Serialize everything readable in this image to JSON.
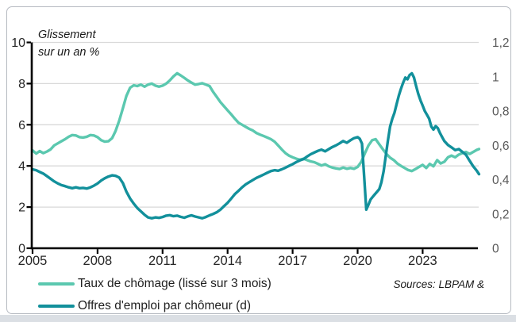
{
  "annotation": {
    "line1": "Glissement",
    "line2": "sur un an %"
  },
  "sources_label": "Sources: LBPAM &",
  "colors": {
    "unemployment_line": "#5BC8AF",
    "vacancies_line": "#12909B",
    "gridline": "#d9d9d9",
    "axis": "#000000",
    "left_tick_label": "#262626",
    "right_tick_label": "#595959",
    "x_tick_label": "#262626"
  },
  "chart_data": {
    "type": "line",
    "annotation": "Glissement sur un an %",
    "legend_position": "bottom-left",
    "grid": "horizontal-left-axis",
    "x_axis": {
      "ticks": [
        2005,
        2008,
        2011,
        2014,
        2017,
        2020,
        2023
      ],
      "tick_labels": [
        "2005",
        "2008",
        "2011",
        "2014",
        "2017",
        "2020",
        "2023"
      ],
      "range": [
        2005,
        2025.7
      ]
    },
    "y_axis_left": {
      "tick_values": [
        0,
        2,
        4,
        6,
        8,
        10
      ],
      "tick_labels": [
        "0",
        "2",
        "4",
        "6",
        "8",
        "10"
      ],
      "range": [
        0,
        10
      ]
    },
    "y_axis_right": {
      "tick_values": [
        0,
        0.2,
        0.4,
        0.6,
        0.8,
        1,
        1.2
      ],
      "tick_labels": [
        "0",
        "0,2",
        "0,4",
        "0,6",
        "0,8",
        "1",
        "1,2"
      ],
      "range": [
        0,
        1.2
      ]
    },
    "series": [
      {
        "name": "Taux de chômage (lissé sur 3 mois)",
        "axis": "left",
        "color": "#5BC8AF",
        "points": [
          [
            2005.0,
            4.75
          ],
          [
            2005.17,
            4.6
          ],
          [
            2005.33,
            4.72
          ],
          [
            2005.5,
            4.62
          ],
          [
            2005.67,
            4.7
          ],
          [
            2005.83,
            4.8
          ],
          [
            2006.0,
            5.0
          ],
          [
            2006.17,
            5.1
          ],
          [
            2006.33,
            5.2
          ],
          [
            2006.5,
            5.3
          ],
          [
            2006.67,
            5.42
          ],
          [
            2006.83,
            5.5
          ],
          [
            2007.0,
            5.48
          ],
          [
            2007.17,
            5.4
          ],
          [
            2007.33,
            5.38
          ],
          [
            2007.5,
            5.42
          ],
          [
            2007.67,
            5.5
          ],
          [
            2007.83,
            5.48
          ],
          [
            2008.0,
            5.4
          ],
          [
            2008.17,
            5.25
          ],
          [
            2008.33,
            5.18
          ],
          [
            2008.5,
            5.2
          ],
          [
            2008.67,
            5.35
          ],
          [
            2008.83,
            5.7
          ],
          [
            2009.0,
            6.2
          ],
          [
            2009.17,
            6.8
          ],
          [
            2009.33,
            7.4
          ],
          [
            2009.5,
            7.8
          ],
          [
            2009.67,
            7.92
          ],
          [
            2009.83,
            7.88
          ],
          [
            2010.0,
            7.95
          ],
          [
            2010.17,
            7.85
          ],
          [
            2010.33,
            7.95
          ],
          [
            2010.5,
            8.0
          ],
          [
            2010.67,
            7.9
          ],
          [
            2010.83,
            7.85
          ],
          [
            2011.0,
            7.9
          ],
          [
            2011.17,
            8.0
          ],
          [
            2011.33,
            8.15
          ],
          [
            2011.5,
            8.35
          ],
          [
            2011.67,
            8.5
          ],
          [
            2011.83,
            8.4
          ],
          [
            2012.0,
            8.28
          ],
          [
            2012.17,
            8.15
          ],
          [
            2012.33,
            8.05
          ],
          [
            2012.5,
            7.95
          ],
          [
            2012.67,
            7.98
          ],
          [
            2012.83,
            8.02
          ],
          [
            2013.0,
            7.95
          ],
          [
            2013.17,
            7.88
          ],
          [
            2013.33,
            7.6
          ],
          [
            2013.5,
            7.35
          ],
          [
            2013.67,
            7.1
          ],
          [
            2013.83,
            6.9
          ],
          [
            2014.0,
            6.7
          ],
          [
            2014.17,
            6.5
          ],
          [
            2014.33,
            6.3
          ],
          [
            2014.5,
            6.1
          ],
          [
            2014.67,
            6.0
          ],
          [
            2014.83,
            5.9
          ],
          [
            2015.0,
            5.8
          ],
          [
            2015.17,
            5.72
          ],
          [
            2015.33,
            5.6
          ],
          [
            2015.5,
            5.52
          ],
          [
            2015.67,
            5.45
          ],
          [
            2015.83,
            5.38
          ],
          [
            2016.0,
            5.3
          ],
          [
            2016.17,
            5.18
          ],
          [
            2016.33,
            5.0
          ],
          [
            2016.5,
            4.8
          ],
          [
            2016.67,
            4.62
          ],
          [
            2016.83,
            4.5
          ],
          [
            2017.0,
            4.42
          ],
          [
            2017.17,
            4.35
          ],
          [
            2017.33,
            4.3
          ],
          [
            2017.5,
            4.35
          ],
          [
            2017.67,
            4.28
          ],
          [
            2017.83,
            4.22
          ],
          [
            2018.0,
            4.18
          ],
          [
            2018.17,
            4.1
          ],
          [
            2018.33,
            4.02
          ],
          [
            2018.5,
            4.08
          ],
          [
            2018.67,
            3.98
          ],
          [
            2018.83,
            3.92
          ],
          [
            2019.0,
            3.88
          ],
          [
            2019.17,
            3.85
          ],
          [
            2019.33,
            3.92
          ],
          [
            2019.5,
            3.86
          ],
          [
            2019.67,
            3.9
          ],
          [
            2019.83,
            3.86
          ],
          [
            2020.0,
            3.95
          ],
          [
            2020.17,
            4.2
          ],
          [
            2020.33,
            4.6
          ],
          [
            2020.5,
            5.0
          ],
          [
            2020.67,
            5.25
          ],
          [
            2020.83,
            5.3
          ],
          [
            2021.0,
            5.05
          ],
          [
            2021.17,
            4.8
          ],
          [
            2021.33,
            4.58
          ],
          [
            2021.5,
            4.4
          ],
          [
            2021.67,
            4.28
          ],
          [
            2021.83,
            4.12
          ],
          [
            2022.0,
            4.0
          ],
          [
            2022.17,
            3.9
          ],
          [
            2022.33,
            3.8
          ],
          [
            2022.5,
            3.75
          ],
          [
            2022.67,
            3.85
          ],
          [
            2022.83,
            3.95
          ],
          [
            2023.0,
            4.05
          ],
          [
            2023.17,
            3.9
          ],
          [
            2023.33,
            4.1
          ],
          [
            2023.5,
            3.98
          ],
          [
            2023.67,
            4.28
          ],
          [
            2023.83,
            4.12
          ],
          [
            2024.0,
            4.2
          ],
          [
            2024.17,
            4.42
          ],
          [
            2024.33,
            4.5
          ],
          [
            2024.5,
            4.42
          ],
          [
            2024.67,
            4.55
          ],
          [
            2024.83,
            4.62
          ],
          [
            2025.0,
            4.68
          ],
          [
            2025.17,
            4.58
          ],
          [
            2025.33,
            4.68
          ],
          [
            2025.5,
            4.78
          ],
          [
            2025.6,
            4.82
          ]
        ]
      },
      {
        "name": "Offres d'emploi par chômeur (d)",
        "axis": "right",
        "color": "#12909B",
        "points": [
          [
            2005.0,
            0.46
          ],
          [
            2005.17,
            0.455
          ],
          [
            2005.33,
            0.445
          ],
          [
            2005.5,
            0.435
          ],
          [
            2005.67,
            0.42
          ],
          [
            2005.83,
            0.405
          ],
          [
            2006.0,
            0.39
          ],
          [
            2006.17,
            0.378
          ],
          [
            2006.33,
            0.368
          ],
          [
            2006.5,
            0.362
          ],
          [
            2006.67,
            0.355
          ],
          [
            2006.83,
            0.35
          ],
          [
            2007.0,
            0.355
          ],
          [
            2007.17,
            0.35
          ],
          [
            2007.33,
            0.352
          ],
          [
            2007.5,
            0.348
          ],
          [
            2007.67,
            0.355
          ],
          [
            2007.83,
            0.365
          ],
          [
            2008.0,
            0.378
          ],
          [
            2008.17,
            0.395
          ],
          [
            2008.33,
            0.408
          ],
          [
            2008.5,
            0.418
          ],
          [
            2008.67,
            0.425
          ],
          [
            2008.83,
            0.422
          ],
          [
            2009.0,
            0.412
          ],
          [
            2009.17,
            0.38
          ],
          [
            2009.33,
            0.33
          ],
          [
            2009.5,
            0.29
          ],
          [
            2009.67,
            0.26
          ],
          [
            2009.83,
            0.235
          ],
          [
            2010.0,
            0.215
          ],
          [
            2010.17,
            0.195
          ],
          [
            2010.33,
            0.18
          ],
          [
            2010.5,
            0.175
          ],
          [
            2010.67,
            0.18
          ],
          [
            2010.83,
            0.177
          ],
          [
            2011.0,
            0.182
          ],
          [
            2011.17,
            0.19
          ],
          [
            2011.33,
            0.193
          ],
          [
            2011.5,
            0.187
          ],
          [
            2011.67,
            0.19
          ],
          [
            2011.83,
            0.183
          ],
          [
            2012.0,
            0.178
          ],
          [
            2012.17,
            0.186
          ],
          [
            2012.33,
            0.192
          ],
          [
            2012.5,
            0.185
          ],
          [
            2012.67,
            0.18
          ],
          [
            2012.83,
            0.175
          ],
          [
            2013.0,
            0.182
          ],
          [
            2013.17,
            0.192
          ],
          [
            2013.33,
            0.2
          ],
          [
            2013.5,
            0.21
          ],
          [
            2013.67,
            0.225
          ],
          [
            2013.83,
            0.245
          ],
          [
            2014.0,
            0.265
          ],
          [
            2014.17,
            0.29
          ],
          [
            2014.33,
            0.315
          ],
          [
            2014.5,
            0.335
          ],
          [
            2014.67,
            0.355
          ],
          [
            2014.83,
            0.372
          ],
          [
            2015.0,
            0.385
          ],
          [
            2015.17,
            0.398
          ],
          [
            2015.33,
            0.41
          ],
          [
            2015.5,
            0.42
          ],
          [
            2015.67,
            0.43
          ],
          [
            2015.83,
            0.44
          ],
          [
            2016.0,
            0.45
          ],
          [
            2016.17,
            0.455
          ],
          [
            2016.33,
            0.452
          ],
          [
            2016.5,
            0.46
          ],
          [
            2016.67,
            0.47
          ],
          [
            2016.83,
            0.48
          ],
          [
            2017.0,
            0.49
          ],
          [
            2017.17,
            0.502
          ],
          [
            2017.33,
            0.512
          ],
          [
            2017.5,
            0.52
          ],
          [
            2017.67,
            0.535
          ],
          [
            2017.83,
            0.548
          ],
          [
            2018.0,
            0.558
          ],
          [
            2018.17,
            0.568
          ],
          [
            2018.33,
            0.575
          ],
          [
            2018.5,
            0.565
          ],
          [
            2018.67,
            0.578
          ],
          [
            2018.83,
            0.59
          ],
          [
            2019.0,
            0.6
          ],
          [
            2019.17,
            0.612
          ],
          [
            2019.33,
            0.625
          ],
          [
            2019.5,
            0.615
          ],
          [
            2019.67,
            0.63
          ],
          [
            2019.83,
            0.642
          ],
          [
            2020.0,
            0.648
          ],
          [
            2020.1,
            0.638
          ],
          [
            2020.2,
            0.61
          ],
          [
            2020.3,
            0.42
          ],
          [
            2020.4,
            0.225
          ],
          [
            2020.5,
            0.255
          ],
          [
            2020.6,
            0.285
          ],
          [
            2020.7,
            0.3
          ],
          [
            2020.8,
            0.315
          ],
          [
            2020.9,
            0.33
          ],
          [
            2021.0,
            0.345
          ],
          [
            2021.1,
            0.385
          ],
          [
            2021.2,
            0.45
          ],
          [
            2021.3,
            0.54
          ],
          [
            2021.4,
            0.63
          ],
          [
            2021.5,
            0.71
          ],
          [
            2021.6,
            0.755
          ],
          [
            2021.7,
            0.79
          ],
          [
            2021.8,
            0.84
          ],
          [
            2021.9,
            0.89
          ],
          [
            2022.0,
            0.93
          ],
          [
            2022.1,
            0.965
          ],
          [
            2022.2,
            0.995
          ],
          [
            2022.3,
            0.985
          ],
          [
            2022.4,
            1.01
          ],
          [
            2022.5,
            1.02
          ],
          [
            2022.6,
            0.995
          ],
          [
            2022.7,
            0.945
          ],
          [
            2022.8,
            0.9
          ],
          [
            2022.9,
            0.862
          ],
          [
            2023.0,
            0.832
          ],
          [
            2023.1,
            0.8
          ],
          [
            2023.2,
            0.778
          ],
          [
            2023.3,
            0.755
          ],
          [
            2023.4,
            0.71
          ],
          [
            2023.5,
            0.692
          ],
          [
            2023.6,
            0.712
          ],
          [
            2023.7,
            0.7
          ],
          [
            2023.8,
            0.672
          ],
          [
            2023.9,
            0.648
          ],
          [
            2024.0,
            0.625
          ],
          [
            2024.17,
            0.602
          ],
          [
            2024.33,
            0.588
          ],
          [
            2024.5,
            0.572
          ],
          [
            2024.67,
            0.578
          ],
          [
            2024.83,
            0.562
          ],
          [
            2025.0,
            0.545
          ],
          [
            2025.17,
            0.51
          ],
          [
            2025.33,
            0.478
          ],
          [
            2025.5,
            0.452
          ],
          [
            2025.6,
            0.432
          ]
        ]
      }
    ]
  }
}
